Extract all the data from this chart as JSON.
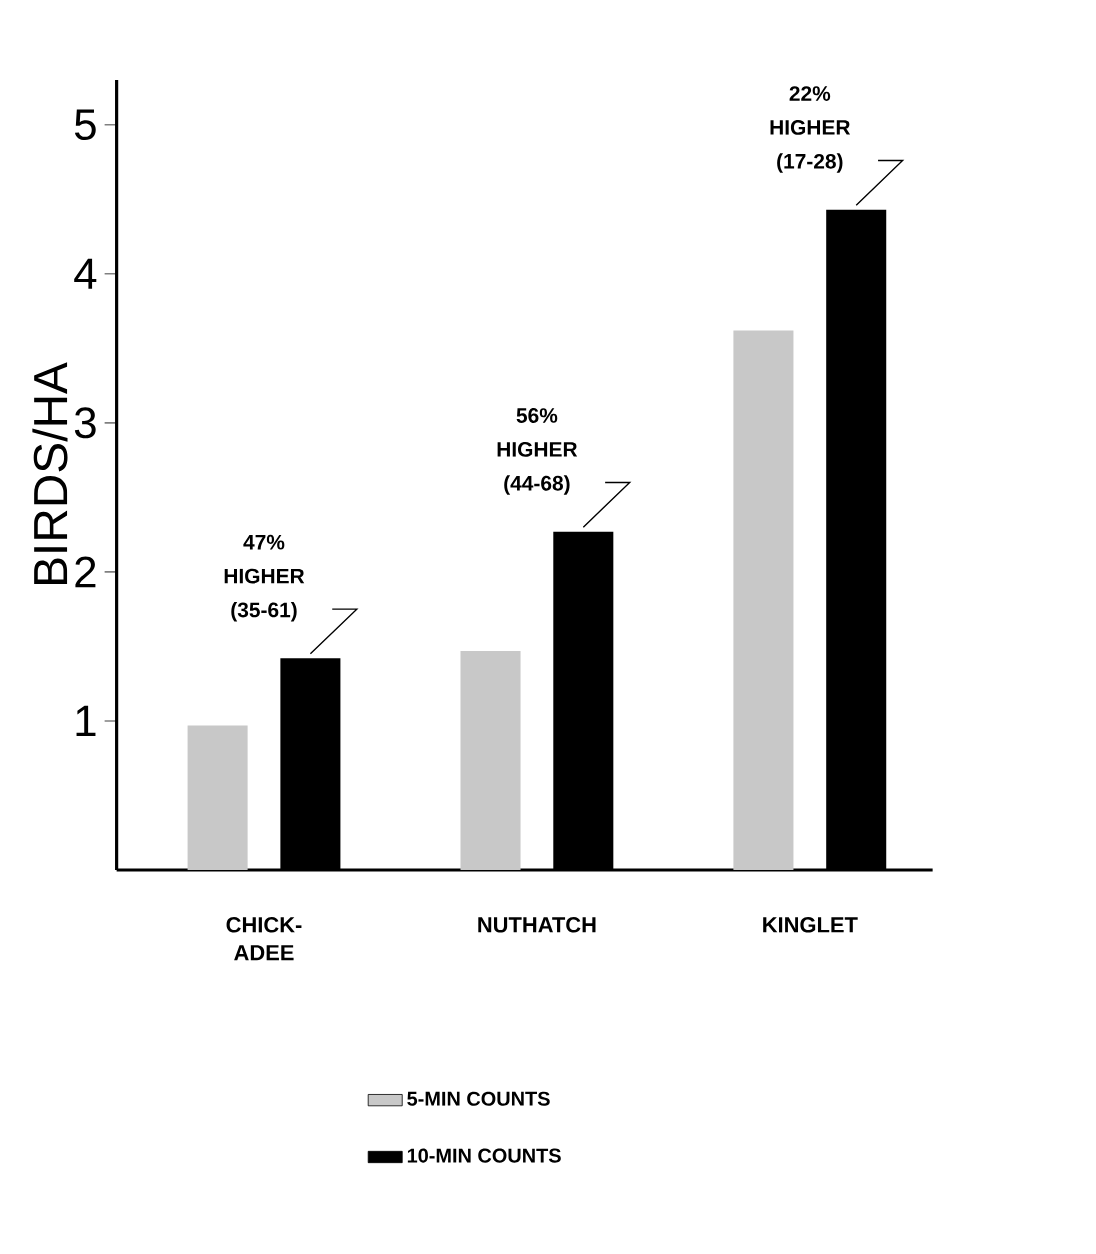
{
  "chart_data": {
    "type": "bar",
    "ylabel": "BIRDS/HA",
    "categories": [
      "CHICK-ADEE",
      "NUTHATCH",
      "KINGLET"
    ],
    "series": [
      {
        "name": "5-MIN COUNTS",
        "color": "#c8c8c8",
        "values": [
          0.97,
          1.47,
          3.62
        ]
      },
      {
        "name": "10-MIN COUNTS",
        "color": "#000000",
        "values": [
          1.42,
          2.27,
          4.43
        ]
      }
    ],
    "ylim": [
      0,
      5.3
    ],
    "yticks": [
      1,
      2,
      3,
      4,
      5
    ],
    "legend": "bottom",
    "annotations": [
      "47% HIGHER (35-61)",
      "56% HIGHER (44-68)",
      "22% HIGHER (17-28)"
    ]
  }
}
